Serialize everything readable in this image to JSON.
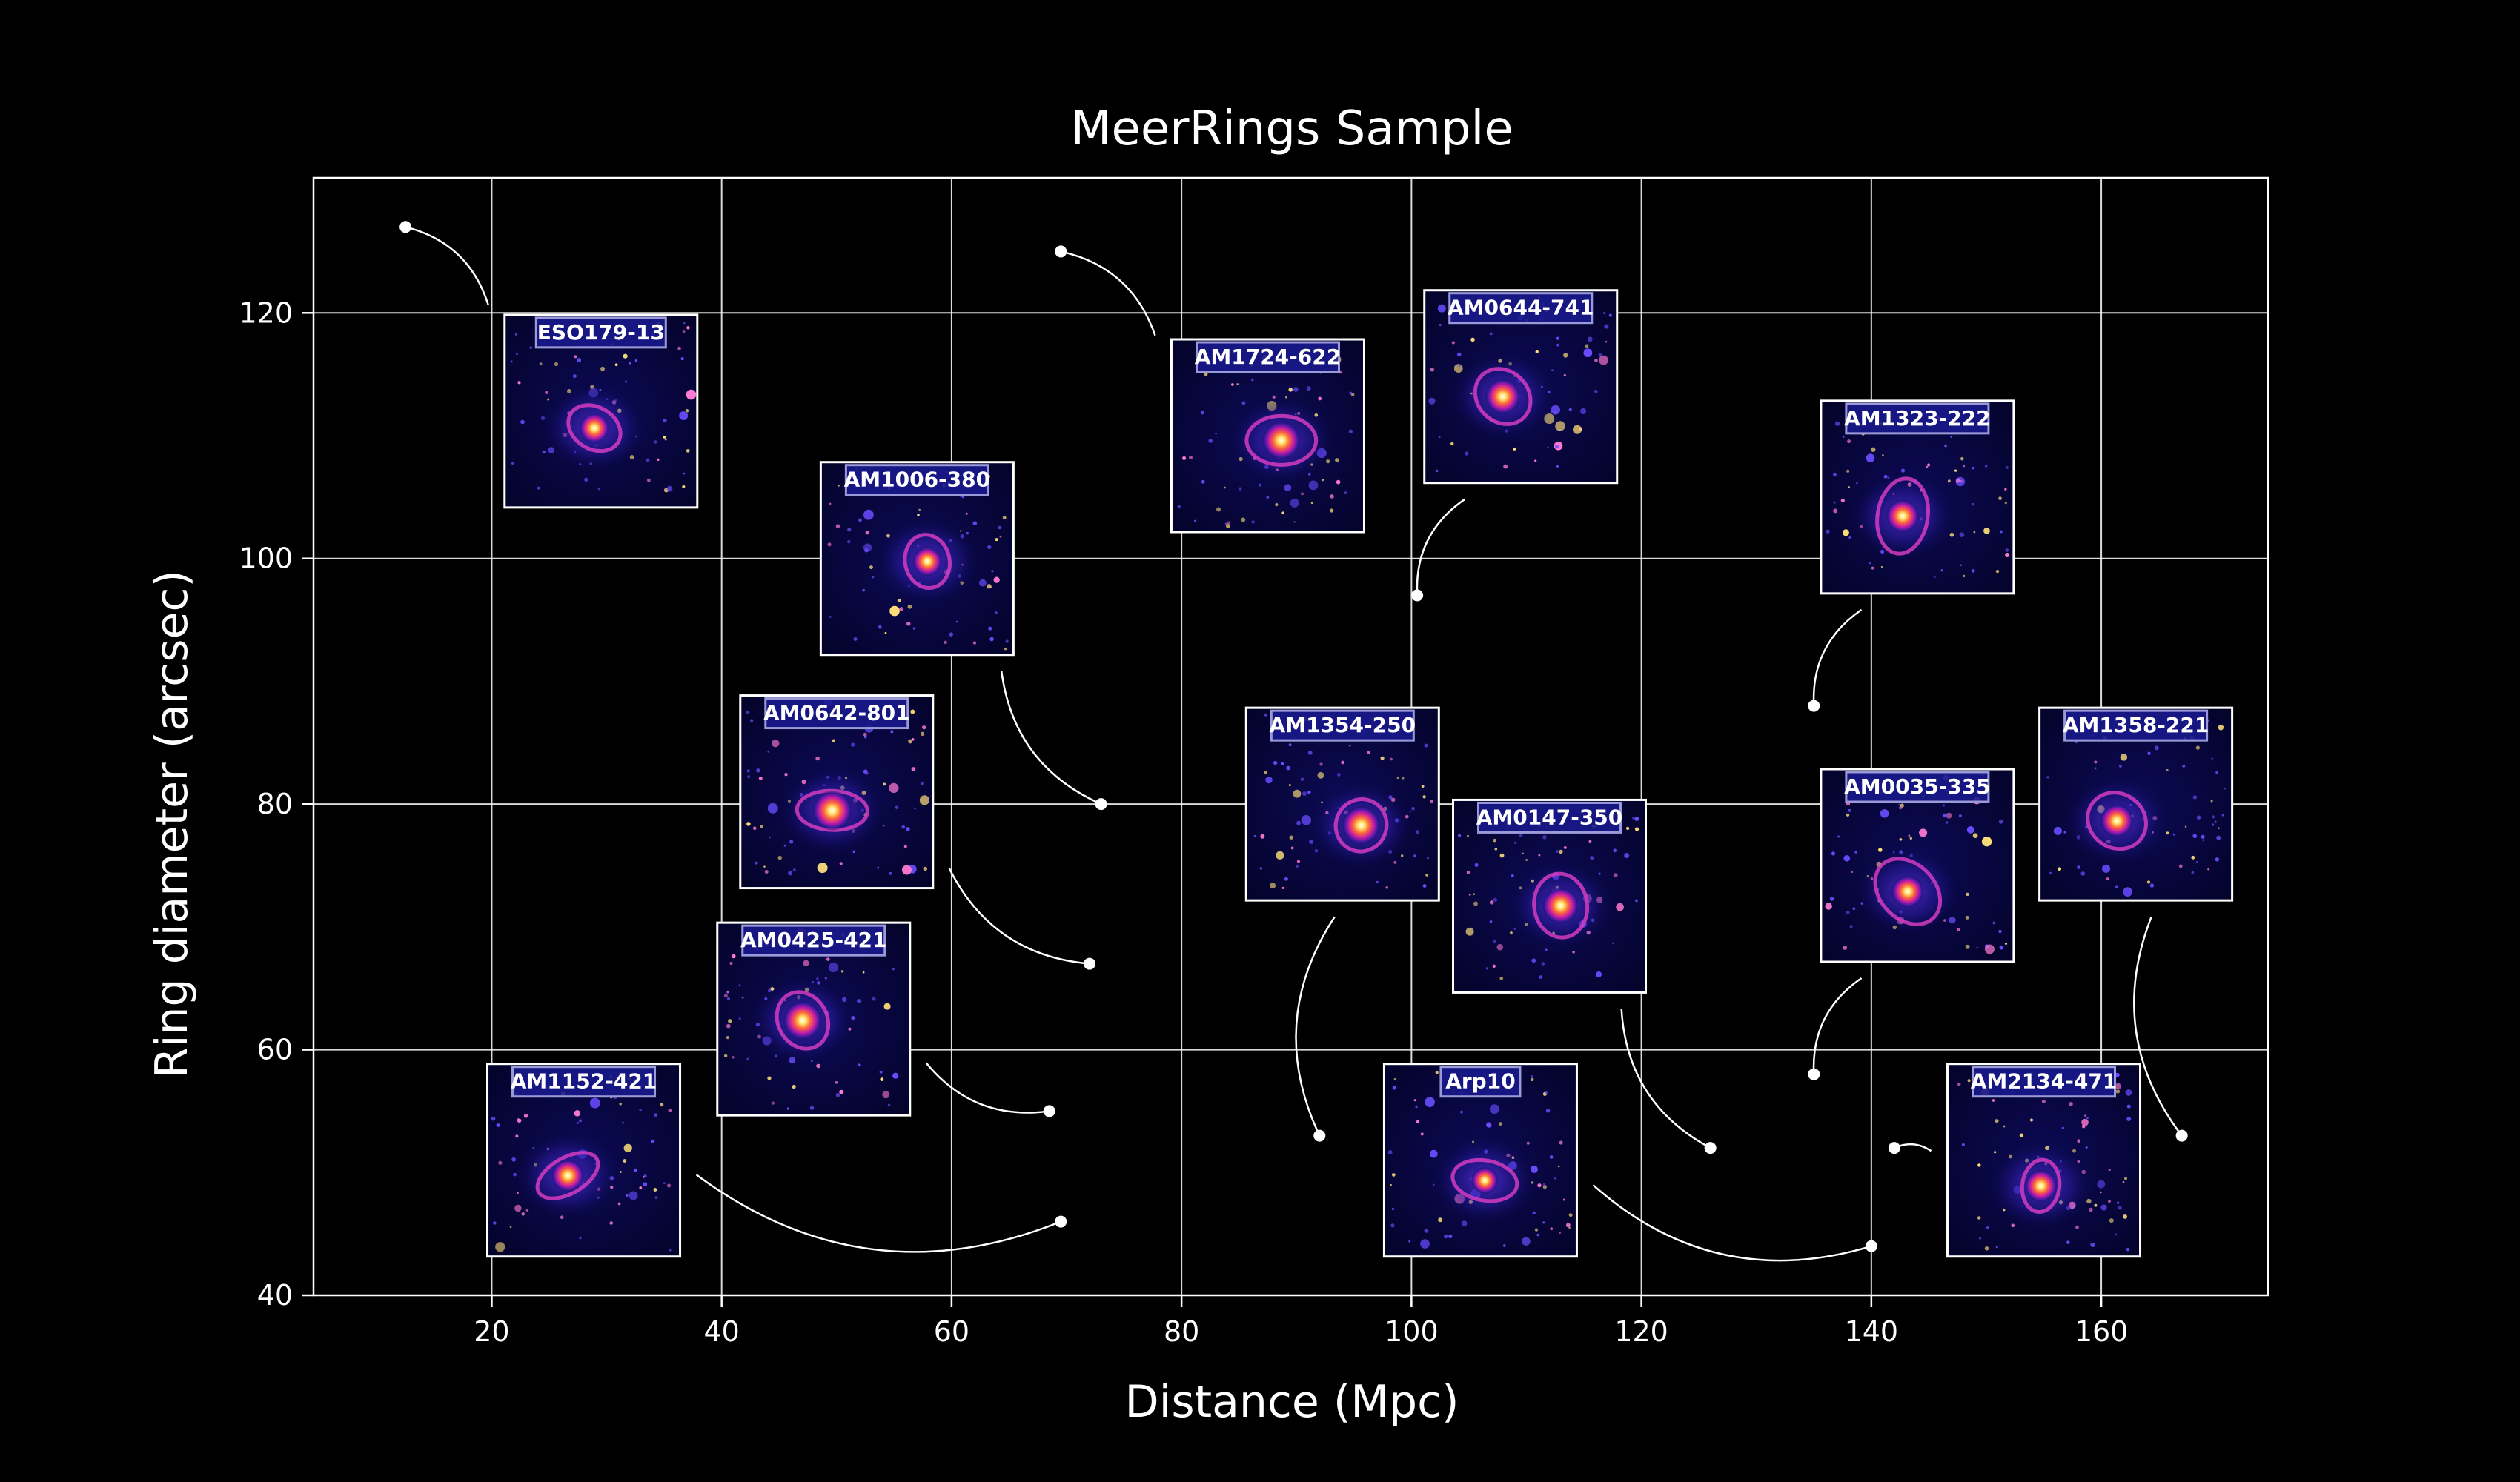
{
  "chart_data": {
    "type": "scatter",
    "title": "MeerRings Sample",
    "xlabel": "Distance (Mpc)",
    "ylabel": "Ring diameter (arcsec)",
    "xlim": [
      4.5,
      174.5
    ],
    "ylim": [
      40,
      131
    ],
    "xticks": [
      20,
      40,
      60,
      80,
      100,
      120,
      140,
      160
    ],
    "yticks": [
      40,
      60,
      80,
      100,
      120
    ],
    "grid": true,
    "colors": {
      "background": "#000000",
      "foreground": "#ffffff",
      "label_box": "#1a1a8c"
    },
    "points": [
      {
        "name": "ESO179-13",
        "x": 12.5,
        "y": 127,
        "thumb": [
          29.5,
          112
        ]
      },
      {
        "name": "AM1152-421",
        "x": 69.5,
        "y": 46,
        "thumb": [
          28,
          51
        ]
      },
      {
        "name": "AM0425-421",
        "x": 68.5,
        "y": 55,
        "thumb": [
          48,
          62.5
        ]
      },
      {
        "name": "AM0642-801",
        "x": 72,
        "y": 67,
        "thumb": [
          50,
          81
        ]
      },
      {
        "name": "AM1006-380",
        "x": 73,
        "y": 80,
        "thumb": [
          57,
          100
        ]
      },
      {
        "name": "AM1724-622",
        "x": 69.5,
        "y": 125,
        "thumb": [
          87.5,
          110
        ]
      },
      {
        "name": "AM1354-250",
        "x": 92,
        "y": 53,
        "thumb": [
          94,
          80
        ]
      },
      {
        "name": "AM0644-741",
        "x": 100.5,
        "y": 97,
        "thumb": [
          109.5,
          114
        ]
      },
      {
        "name": "Arp10",
        "x": 140,
        "y": 44,
        "thumb": [
          106,
          51
        ]
      },
      {
        "name": "AM0147-350",
        "x": 126,
        "y": 52,
        "thumb": [
          112,
          72.5
        ]
      },
      {
        "name": "AM1323-222",
        "x": 135,
        "y": 88,
        "thumb": [
          144,
          105
        ]
      },
      {
        "name": "AM0035-335",
        "x": 135,
        "y": 58,
        "thumb": [
          144,
          75
        ]
      },
      {
        "name": "AM2134-471",
        "x": 142,
        "y": 52,
        "thumb": [
          155,
          51
        ]
      },
      {
        "name": "AM1358-221",
        "x": 167,
        "y": 53,
        "thumb": [
          163,
          80
        ]
      }
    ]
  }
}
